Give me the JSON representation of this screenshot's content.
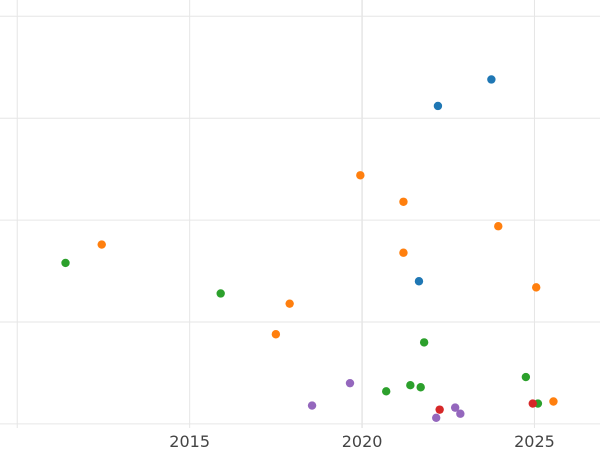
{
  "chart_data": {
    "type": "scatter",
    "title": "",
    "xlabel": "",
    "ylabel": "",
    "xlim": [
      2009.5,
      2026.9
    ],
    "ylim": [
      -0.2,
      20.8
    ],
    "grid": true,
    "x_ticks": [
      2015,
      2020,
      2025
    ],
    "x_tick_labels": [
      "2015",
      "2020",
      "2025"
    ],
    "y_gridlines": [
      0,
      5,
      10,
      15,
      20
    ],
    "series": [
      {
        "color": "#1f77b4",
        "points": [
          [
            2022.2,
            15.6
          ],
          [
            2023.75,
            16.9
          ],
          [
            2021.65,
            7.0
          ]
        ]
      },
      {
        "color": "#ff7f0e",
        "points": [
          [
            2012.45,
            8.8
          ],
          [
            2017.5,
            4.4
          ],
          [
            2017.9,
            5.9
          ],
          [
            2019.95,
            12.2
          ],
          [
            2021.2,
            10.9
          ],
          [
            2021.2,
            8.4
          ],
          [
            2023.95,
            9.7
          ],
          [
            2025.05,
            6.7
          ],
          [
            2025.55,
            1.1
          ]
        ]
      },
      {
        "color": "#2ca02c",
        "points": [
          [
            2011.4,
            7.9
          ],
          [
            2015.9,
            6.4
          ],
          [
            2020.7,
            1.6
          ],
          [
            2021.4,
            1.9
          ],
          [
            2021.7,
            1.8
          ],
          [
            2021.8,
            4.0
          ],
          [
            2024.75,
            2.3
          ],
          [
            2025.1,
            1.0
          ]
        ]
      },
      {
        "color": "#d62728",
        "points": [
          [
            2022.25,
            0.7
          ],
          [
            2024.95,
            1.0
          ]
        ]
      },
      {
        "color": "#9467bd",
        "points": [
          [
            2018.55,
            0.9
          ],
          [
            2019.65,
            2.0
          ],
          [
            2022.15,
            0.3
          ],
          [
            2022.7,
            0.8
          ],
          [
            2022.85,
            0.5
          ]
        ]
      }
    ]
  }
}
